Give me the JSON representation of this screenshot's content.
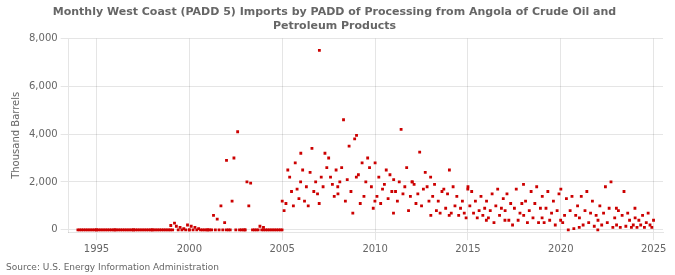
{
  "chart_data": {
    "type": "scatter",
    "title": "Monthly West Coast (PADD 5) Imports by PADD of Processing from Angola of Crude Oil and\nPetroleum Products",
    "ylabel": "Thousand Barrels",
    "source": "Source: U.S. Energy Information Administration",
    "color": "#cc0000",
    "marker": "square",
    "grid": true,
    "xlim": [
      1993.5,
      2025.5
    ],
    "xticks": [
      1995,
      2000,
      2005,
      2010,
      2015,
      2020,
      2025
    ],
    "ylim": [
      -100,
      8000
    ],
    "yticks": [
      0,
      {
        "value": 2000,
        "label": "2,000"
      },
      {
        "value": 4000,
        "label": "4,000"
      },
      {
        "value": 6000,
        "label": "6,000"
      },
      {
        "value": 8000,
        "label": "8,000"
      }
    ],
    "x": [
      1994.0,
      1994.1,
      1994.2,
      1994.3,
      1994.4,
      1994.5,
      1994.6,
      1994.7,
      1994.8,
      1994.9,
      1994.99,
      1995.0,
      1995.1,
      1995.2,
      1995.3,
      1995.4,
      1995.5,
      1995.6,
      1995.7,
      1995.8,
      1995.9,
      1995.99,
      1996.0,
      1996.1,
      1996.2,
      1996.3,
      1996.4,
      1996.5,
      1996.6,
      1996.7,
      1996.8,
      1996.9,
      1996.99,
      1997.0,
      1997.1,
      1997.2,
      1997.3,
      1997.4,
      1997.5,
      1997.6,
      1997.7,
      1997.8,
      1997.9,
      1997.99,
      1998.0,
      1998.1,
      1998.2,
      1998.3,
      1998.4,
      1998.5,
      1998.6,
      1998.7,
      1998.8,
      1998.9,
      1998.99,
      1999.0,
      1999.1,
      1999.2,
      1999.3,
      1999.4,
      1999.5,
      1999.6,
      1999.7,
      1999.8,
      1999.9,
      1999.99,
      2000.0,
      2000.1,
      2000.2,
      2000.3,
      2000.4,
      2000.5,
      2000.6,
      2000.7,
      2000.8,
      2000.9,
      2000.99,
      2001.0,
      2001.1,
      2001.2,
      2001.3,
      2001.4,
      2001.5,
      2001.6,
      2001.7,
      2001.8,
      2001.9,
      2001.99,
      2002.0,
      2002.1,
      2002.2,
      2002.3,
      2002.4,
      2002.5,
      2002.6,
      2002.7,
      2002.8,
      2002.9,
      2002.99,
      2003.0,
      2003.1,
      2003.2,
      2003.3,
      2003.4,
      2003.5,
      2003.6,
      2003.7,
      2003.8,
      2003.9,
      2003.99,
      2004.0,
      2004.1,
      2004.2,
      2004.3,
      2004.4,
      2004.5,
      2004.6,
      2004.7,
      2004.8,
      2004.9,
      2004.99,
      2005.0,
      2005.1,
      2005.2,
      2005.3,
      2005.4,
      2005.5,
      2005.6,
      2005.7,
      2005.8,
      2005.9,
      2005.99,
      2006.0,
      2006.1,
      2006.2,
      2006.3,
      2006.4,
      2006.5,
      2006.6,
      2006.7,
      2006.8,
      2006.9,
      2006.99,
      2007.0,
      2007.1,
      2007.2,
      2007.3,
      2007.4,
      2007.5,
      2007.6,
      2007.7,
      2007.8,
      2007.9,
      2007.99,
      2008.0,
      2008.1,
      2008.2,
      2008.3,
      2008.4,
      2008.5,
      2008.6,
      2008.7,
      2008.8,
      2008.9,
      2008.99,
      2009.0,
      2009.1,
      2009.2,
      2009.3,
      2009.4,
      2009.5,
      2009.6,
      2009.7,
      2009.8,
      2009.9,
      2009.99,
      2010.0,
      2010.1,
      2010.2,
      2010.3,
      2010.4,
      2010.5,
      2010.6,
      2010.7,
      2010.8,
      2010.9,
      2010.99,
      2011.0,
      2011.1,
      2011.2,
      2011.3,
      2011.4,
      2011.5,
      2011.6,
      2011.7,
      2011.8,
      2011.9,
      2011.99,
      2012.0,
      2012.1,
      2012.2,
      2012.3,
      2012.4,
      2012.5,
      2012.6,
      2012.7,
      2012.8,
      2012.9,
      2012.99,
      2013.0,
      2013.1,
      2013.2,
      2013.3,
      2013.4,
      2013.5,
      2013.6,
      2013.7,
      2013.8,
      2013.9,
      2013.99,
      2014.0,
      2014.1,
      2014.2,
      2014.3,
      2014.4,
      2014.5,
      2014.6,
      2014.7,
      2014.8,
      2014.9,
      2014.99,
      2015.0,
      2015.1,
      2015.2,
      2015.3,
      2015.4,
      2015.5,
      2015.6,
      2015.7,
      2015.8,
      2015.9,
      2015.99,
      2016.0,
      2016.1,
      2016.2,
      2016.3,
      2016.4,
      2016.5,
      2016.6,
      2016.7,
      2016.8,
      2016.9,
      2016.99,
      2017.0,
      2017.1,
      2017.2,
      2017.3,
      2017.4,
      2017.5,
      2017.6,
      2017.7,
      2017.8,
      2017.9,
      2017.99,
      2018.0,
      2018.1,
      2018.2,
      2018.3,
      2018.4,
      2018.5,
      2018.6,
      2018.7,
      2018.8,
      2018.9,
      2018.99,
      2019.0,
      2019.1,
      2019.2,
      2019.3,
      2019.4,
      2019.5,
      2019.6,
      2019.7,
      2019.8,
      2019.9,
      2019.99,
      2020.0,
      2020.1,
      2020.2,
      2020.3,
      2020.4,
      2020.5,
      2020.6,
      2020.7,
      2020.8,
      2020.9,
      2020.99,
      2021.0,
      2021.1,
      2021.2,
      2021.3,
      2021.4,
      2021.5,
      2021.6,
      2021.7,
      2021.8,
      2021.9,
      2021.99,
      2022.0,
      2022.1,
      2022.2,
      2022.3,
      2022.4,
      2022.5,
      2022.6,
      2022.7,
      2022.8,
      2022.9,
      2022.99,
      2023.0,
      2023.1,
      2023.2,
      2023.3,
      2023.4,
      2023.5,
      2023.6,
      2023.7,
      2023.8,
      2023.9,
      2023.99,
      2024.0,
      2024.1,
      2024.2,
      2024.3,
      2024.4,
      2024.5,
      2024.6,
      2024.7,
      2024.8,
      2024.9,
      2024.99
    ],
    "values": [
      0,
      0,
      0,
      0,
      0,
      0,
      0,
      0,
      0,
      0,
      0,
      0,
      0,
      0,
      0,
      0,
      0,
      0,
      0,
      0,
      0,
      0,
      0,
      0,
      0,
      0,
      0,
      0,
      0,
      0,
      0,
      0,
      0,
      0,
      0,
      0,
      0,
      0,
      0,
      0,
      0,
      0,
      0,
      0,
      0,
      0,
      0,
      0,
      0,
      0,
      0,
      0,
      0,
      0,
      0,
      180,
      0,
      280,
      150,
      0,
      100,
      0,
      50,
      0,
      200,
      0,
      0,
      150,
      0,
      100,
      0,
      50,
      0,
      0,
      0,
      0,
      0,
      0,
      0,
      0,
      600,
      0,
      450,
      0,
      1000,
      0,
      300,
      0,
      2900,
      0,
      0,
      1200,
      3000,
      0,
      4100,
      0,
      0,
      0,
      0,
      0,
      2000,
      1000,
      1950,
      0,
      0,
      0,
      0,
      150,
      0,
      100,
      0,
      0,
      0,
      0,
      0,
      0,
      0,
      0,
      0,
      0,
      0,
      1200,
      800,
      1100,
      2500,
      2200,
      1600,
      1000,
      2800,
      1700,
      1300,
      2000,
      3200,
      2500,
      1200,
      1800,
      1000,
      2400,
      3400,
      1600,
      2000,
      1500,
      1100,
      7500,
      2200,
      1800,
      3200,
      2600,
      3000,
      2200,
      1900,
      1400,
      2500,
      1800,
      1500,
      2000,
      2600,
      4600,
      1200,
      2100,
      3500,
      1600,
      700,
      3800,
      2200,
      3950,
      2300,
      1100,
      2800,
      1400,
      2000,
      3000,
      2600,
      1800,
      900,
      1200,
      2800,
      1400,
      2200,
      1100,
      1700,
      1900,
      2500,
      1300,
      2300,
      1600,
      700,
      2100,
      1600,
      1200,
      2000,
      4200,
      1500,
      1800,
      2600,
      800,
      1400,
      2000,
      2000,
      1900,
      1100,
      1500,
      3250,
      1000,
      1700,
      2400,
      1800,
      1200,
      2200,
      600,
      1400,
      1900,
      800,
      1200,
      700,
      1600,
      1700,
      900,
      1500,
      600,
      2500,
      700,
      1800,
      1000,
      1400,
      600,
      900,
      1200,
      700,
      500,
      1700,
      1800,
      1000,
      1600,
      700,
      1200,
      500,
      800,
      1400,
      600,
      900,
      400,
      1200,
      500,
      800,
      1500,
      300,
      1000,
      1700,
      600,
      900,
      1300,
      400,
      800,
      1500,
      400,
      1100,
      200,
      900,
      1700,
      400,
      700,
      1100,
      1900,
      600,
      1200,
      300,
      800,
      1600,
      500,
      1100,
      1800,
      300,
      900,
      500,
      1400,
      300,
      900,
      1600,
      400,
      700,
      1200,
      200,
      800,
      1500,
      400,
      1700,
      300,
      600,
      1300,
      0,
      800,
      1400,
      50,
      600,
      1000,
      100,
      500,
      1400,
      200,
      800,
      1600,
      300,
      700,
      1200,
      150,
      600,
      0,
      400,
      1000,
      200,
      700,
      1800,
      300,
      900,
      2000,
      100,
      500,
      900,
      200,
      800,
      100,
      600,
      1600,
      150,
      700,
      400,
      100,
      200,
      900,
      500,
      100,
      400,
      200,
      600,
      100,
      300,
      700,
      200,
      100,
      400
    ]
  }
}
